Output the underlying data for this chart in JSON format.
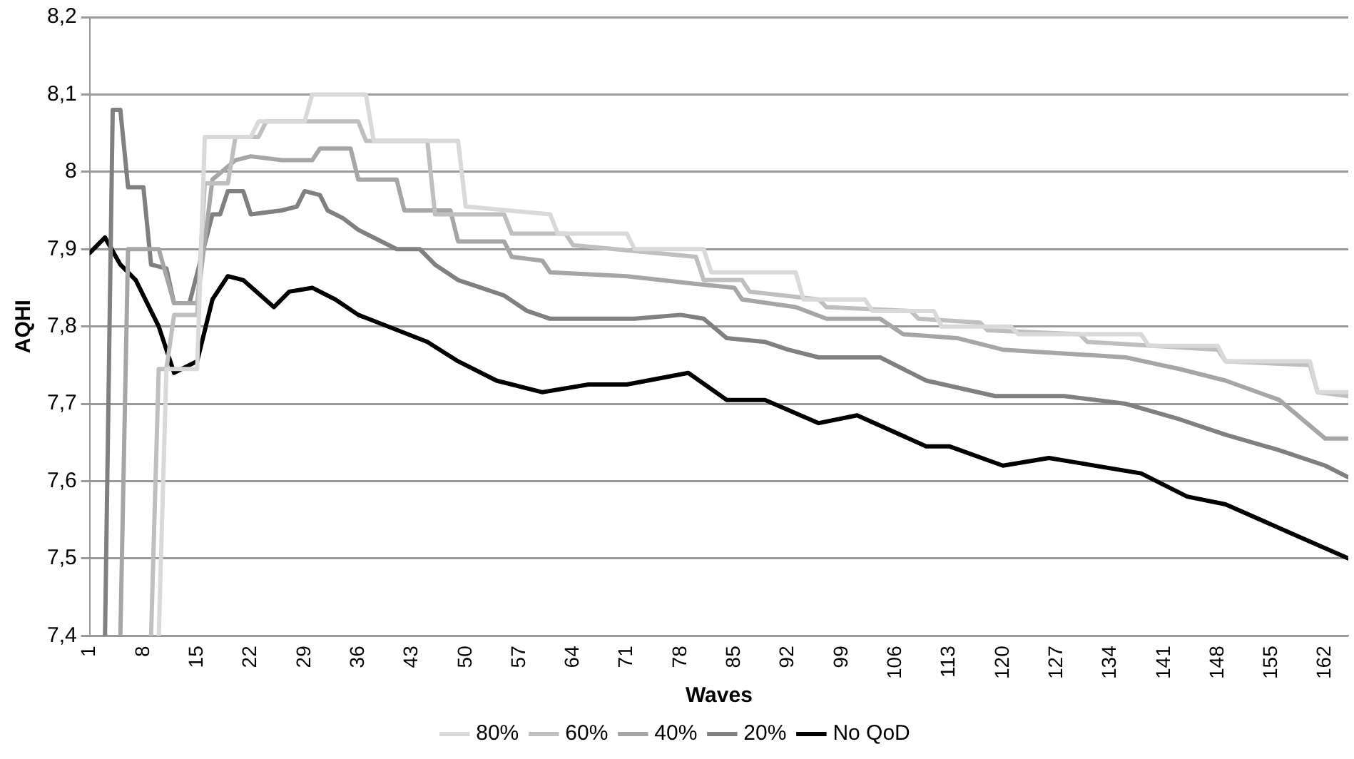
{
  "chart_data": {
    "type": "line",
    "xlabel": "Waves",
    "ylabel": "AQHI",
    "xlim": [
      1,
      165
    ],
    "xticks": [
      1,
      8,
      15,
      22,
      29,
      36,
      43,
      50,
      57,
      64,
      71,
      78,
      85,
      92,
      99,
      106,
      113,
      120,
      127,
      134,
      141,
      148,
      155,
      162
    ],
    "ylim": [
      7.4,
      8.2
    ],
    "yticks": [
      {
        "value": 7.4,
        "label": "7,4"
      },
      {
        "value": 7.5,
        "label": "7,5"
      },
      {
        "value": 7.6,
        "label": "7,6"
      },
      {
        "value": 7.7,
        "label": "7,7"
      },
      {
        "value": 7.8,
        "label": "7,8"
      },
      {
        "value": 7.9,
        "label": "7,9"
      },
      {
        "value": 8,
        "label": "8"
      },
      {
        "value": 8.1,
        "label": "8,1"
      },
      {
        "value": 8.2,
        "label": "8,2"
      }
    ],
    "grid": "y",
    "legend": "bottom",
    "marker": "none",
    "line_style": "solid",
    "series": [
      {
        "name": "80%",
        "color": "#d9d9d9",
        "x": [
          10,
          11,
          15,
          16,
          22,
          23,
          29,
          30,
          37,
          38,
          49,
          50,
          61,
          62,
          71,
          72,
          81,
          82,
          93,
          94,
          102,
          103,
          111,
          112,
          121,
          122,
          138,
          139,
          148,
          149,
          160,
          161,
          165
        ],
        "values": [
          7.4,
          7.745,
          7.745,
          8.045,
          8.045,
          8.065,
          8.065,
          8.1,
          8.1,
          8.04,
          8.04,
          7.955,
          7.945,
          7.92,
          7.92,
          7.9,
          7.9,
          7.87,
          7.87,
          7.835,
          7.835,
          7.82,
          7.82,
          7.8,
          7.8,
          7.79,
          7.79,
          7.775,
          7.775,
          7.755,
          7.755,
          7.715,
          7.715
        ]
      },
      {
        "name": "60%",
        "color": "#bfbfbf",
        "x": [
          9,
          10,
          11,
          12,
          15,
          16,
          19,
          20,
          23,
          24,
          36,
          37,
          45,
          46,
          55,
          56,
          63,
          64,
          80,
          81,
          86,
          87,
          96,
          97,
          108,
          109,
          117,
          118,
          130,
          131,
          148,
          149,
          160,
          161,
          165
        ],
        "values": [
          7.4,
          7.745,
          7.745,
          7.815,
          7.815,
          7.985,
          7.985,
          8.045,
          8.045,
          8.065,
          8.065,
          8.04,
          8.04,
          7.945,
          7.945,
          7.92,
          7.92,
          7.905,
          7.89,
          7.86,
          7.86,
          7.845,
          7.835,
          7.825,
          7.82,
          7.81,
          7.805,
          7.795,
          7.79,
          7.78,
          7.77,
          7.755,
          7.75,
          7.715,
          7.71
        ]
      },
      {
        "name": "40%",
        "color": "#a6a6a6",
        "x": [
          5,
          6,
          10,
          12,
          15,
          17,
          20,
          22,
          26,
          30,
          31,
          35,
          36,
          41,
          42,
          48,
          49,
          55,
          56,
          60,
          61,
          71,
          80,
          85,
          86,
          93,
          97,
          104,
          107,
          114,
          120,
          136,
          143,
          149,
          156,
          162,
          165
        ],
        "values": [
          7.4,
          7.9,
          7.9,
          7.83,
          7.83,
          7.99,
          8.015,
          8.02,
          8.015,
          8.015,
          8.03,
          8.03,
          7.99,
          7.99,
          7.95,
          7.95,
          7.91,
          7.91,
          7.89,
          7.885,
          7.87,
          7.865,
          7.855,
          7.85,
          7.835,
          7.825,
          7.81,
          7.81,
          7.79,
          7.785,
          7.77,
          7.76,
          7.745,
          7.73,
          7.705,
          7.655,
          7.655
        ]
      },
      {
        "name": "20%",
        "color": "#808080",
        "x": [
          3,
          4,
          5,
          6,
          8,
          9,
          11,
          12,
          14,
          17,
          18,
          19,
          21,
          22,
          26,
          28,
          29,
          31,
          32,
          34,
          36,
          38,
          41,
          44,
          46,
          49,
          52,
          55,
          58,
          61,
          66,
          72,
          78,
          81,
          84,
          89,
          92,
          96,
          104,
          107,
          110,
          119,
          128,
          136,
          143,
          149,
          156,
          162,
          165
        ],
        "values": [
          7.4,
          8.08,
          8.08,
          7.98,
          7.98,
          7.88,
          7.875,
          7.83,
          7.83,
          7.945,
          7.945,
          7.975,
          7.975,
          7.945,
          7.95,
          7.955,
          7.975,
          7.97,
          7.95,
          7.94,
          7.925,
          7.915,
          7.9,
          7.9,
          7.88,
          7.86,
          7.85,
          7.84,
          7.82,
          7.81,
          7.81,
          7.81,
          7.815,
          7.81,
          7.785,
          7.78,
          7.77,
          7.76,
          7.76,
          7.745,
          7.73,
          7.71,
          7.71,
          7.7,
          7.68,
          7.66,
          7.64,
          7.62,
          7.605
        ]
      },
      {
        "name": "No QoD",
        "color": "#000000",
        "x": [
          1,
          3,
          5,
          7,
          10,
          12,
          15,
          17,
          19,
          21,
          25,
          27,
          30,
          33,
          36,
          45,
          49,
          54,
          60,
          66,
          71,
          79,
          84,
          89,
          96,
          101,
          110,
          113,
          120,
          126,
          129,
          138,
          144,
          149,
          157,
          165
        ],
        "values": [
          7.895,
          7.915,
          7.88,
          7.86,
          7.8,
          7.74,
          7.755,
          7.835,
          7.865,
          7.86,
          7.825,
          7.845,
          7.85,
          7.835,
          7.815,
          7.78,
          7.755,
          7.73,
          7.715,
          7.725,
          7.725,
          7.74,
          7.705,
          7.705,
          7.675,
          7.685,
          7.645,
          7.645,
          7.62,
          7.63,
          7.625,
          7.61,
          7.58,
          7.57,
          7.535,
          7.5
        ]
      }
    ]
  }
}
